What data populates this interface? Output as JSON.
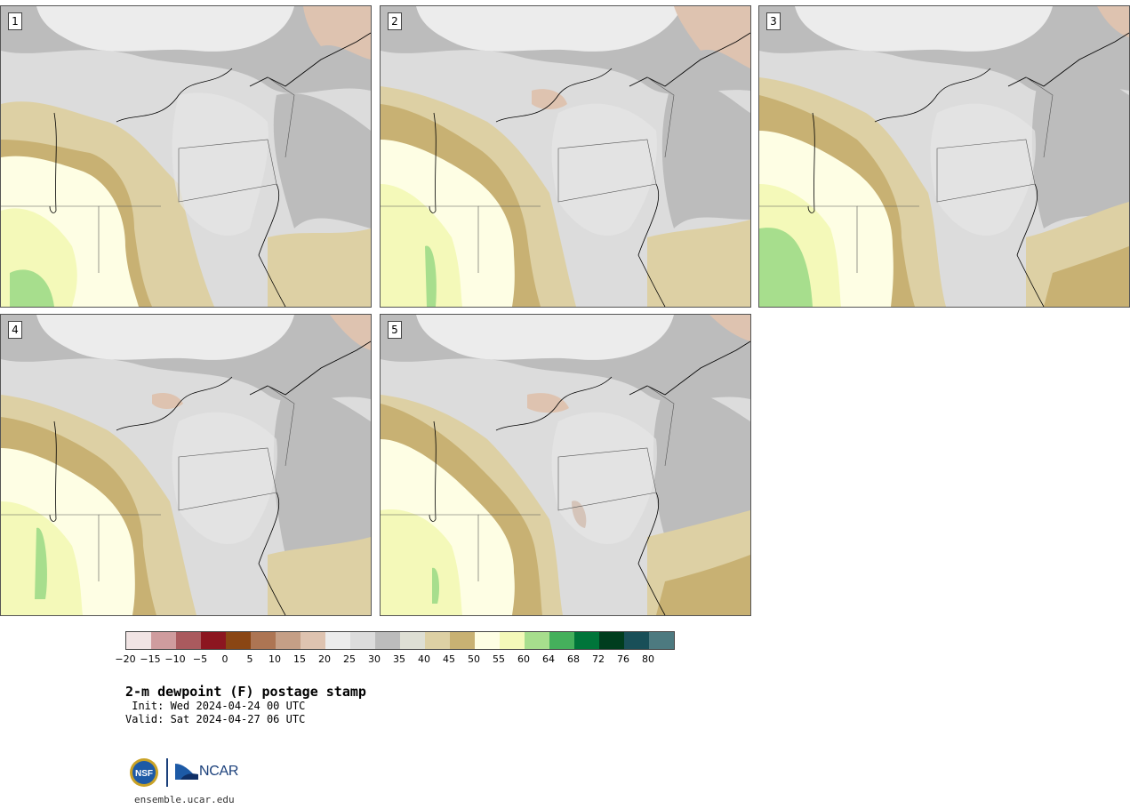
{
  "panels": [
    {
      "label": "1"
    },
    {
      "label": "2"
    },
    {
      "label": "3"
    },
    {
      "label": "4"
    },
    {
      "label": "5"
    }
  ],
  "colorbar": {
    "colors": [
      "#f1e4e4",
      "#cf9c9e",
      "#aa5a5e",
      "#8c1620",
      "#8a4614",
      "#ad7553",
      "#c59f86",
      "#dec3b0",
      "#ececec",
      "#dcdcdc",
      "#bcbcbc",
      "#dedfd4",
      "#ddd0a4",
      "#c8b173",
      "#fefee4",
      "#f4f9b9",
      "#a7de8d",
      "#45b05c",
      "#00753a",
      "#003d1e",
      "#194f58",
      "#4d7a80"
    ],
    "ticks": [
      "−20",
      "−15",
      "−10",
      "−5",
      "0",
      "5",
      "10",
      "15",
      "20",
      "25",
      "30",
      "35",
      "40",
      "45",
      "50",
      "55",
      "60",
      "64",
      "68",
      "72",
      "76",
      "80"
    ]
  },
  "title": {
    "main": "2-m dewpoint (F) postage stamp",
    "init": " Init: Wed 2024-04-24 00 UTC",
    "valid": "Valid: Sat 2024-04-27 06 UTC"
  },
  "logos": {
    "nsf": "NSF",
    "ncar": "NCAR",
    "url": "ensemble.ucar.edu"
  }
}
